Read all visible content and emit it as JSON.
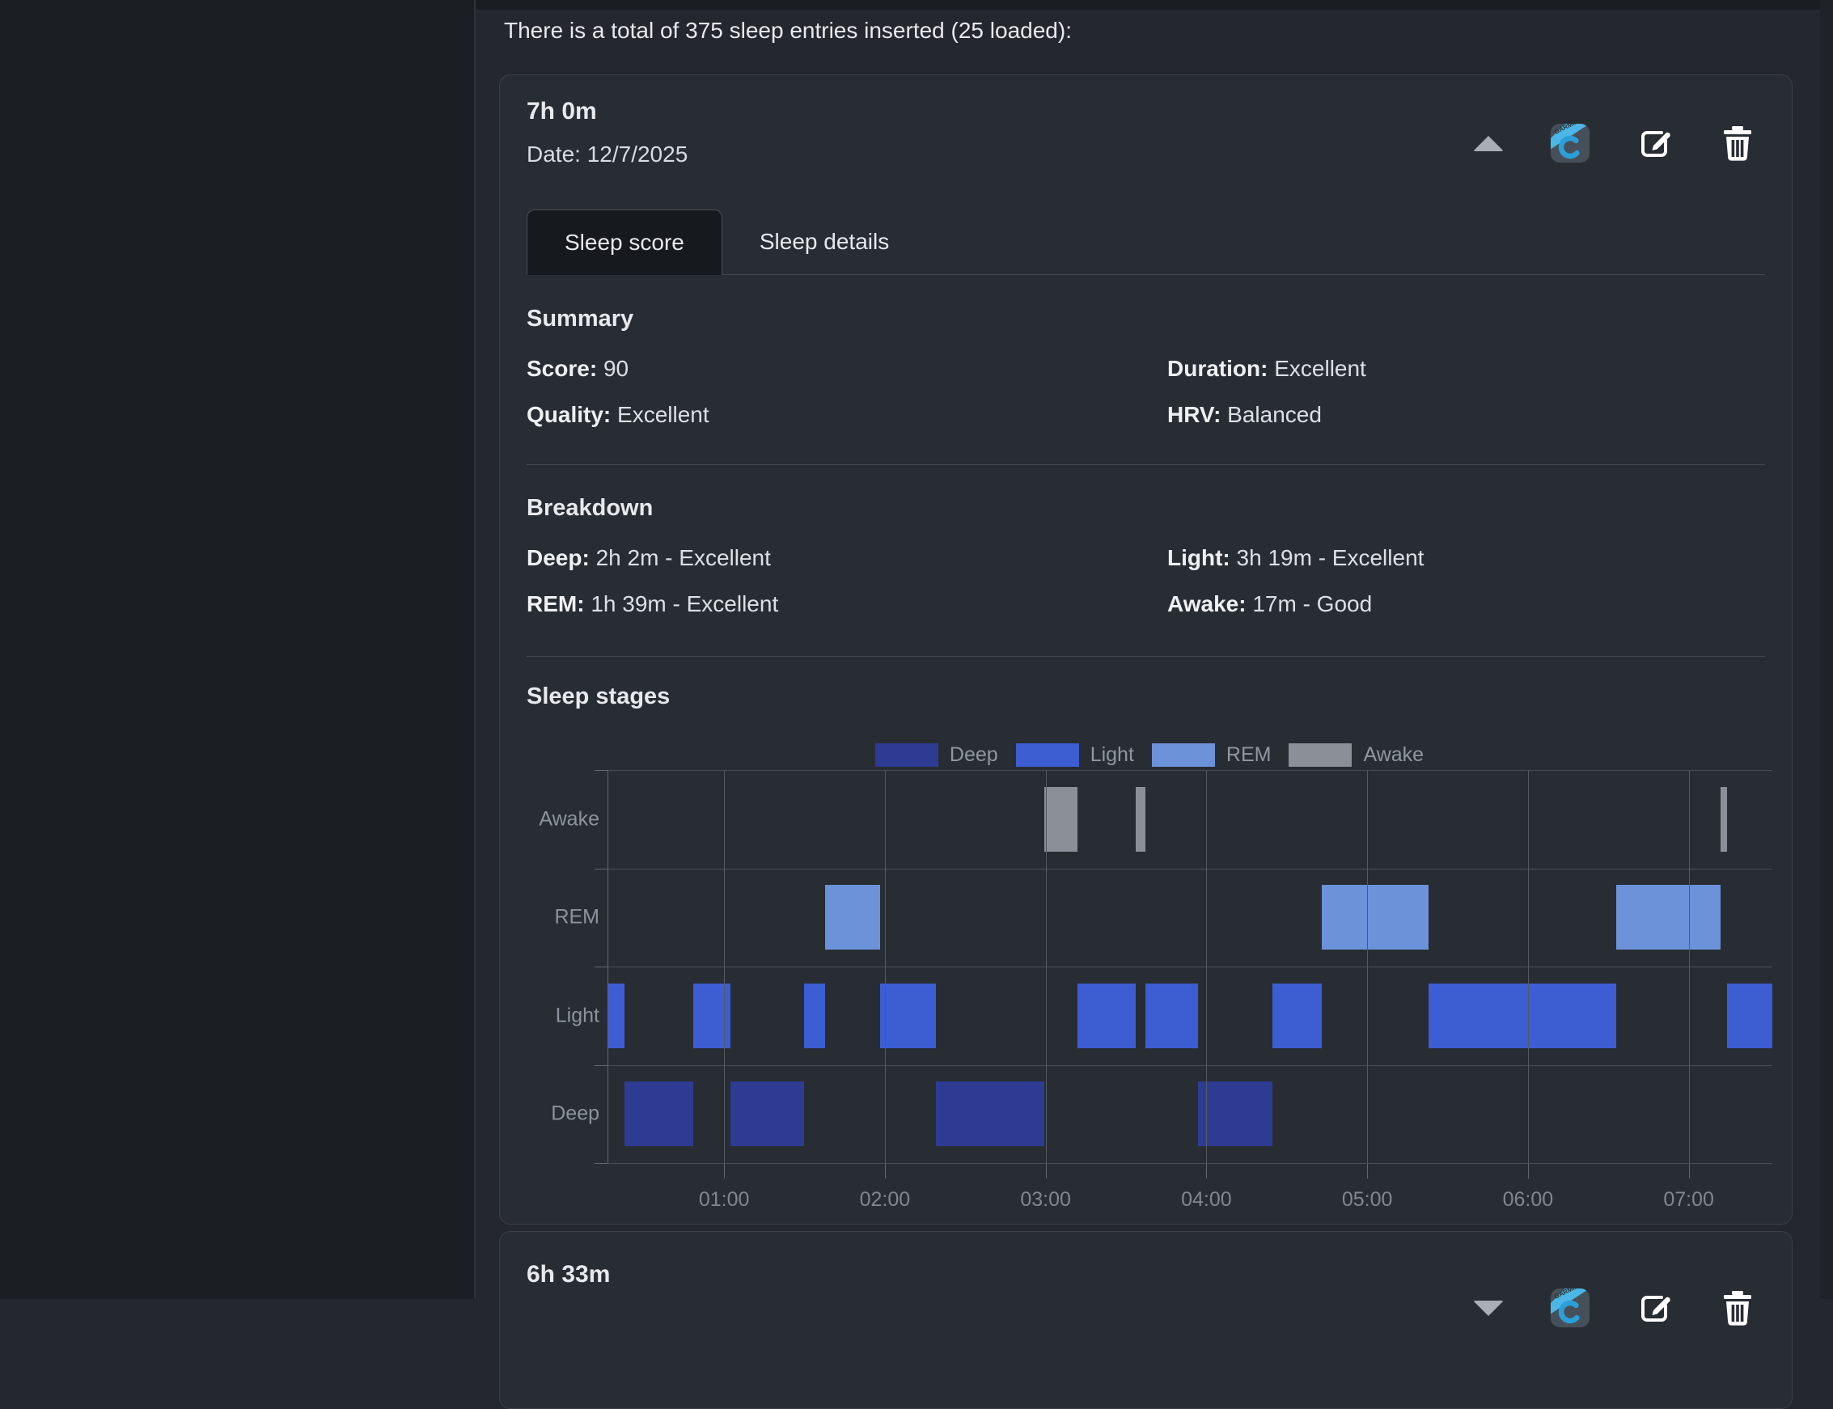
{
  "window": {
    "header_note": "There is a total of 375 sleep entries inserted (25 loaded):"
  },
  "entry": {
    "title": "7h 0m",
    "date": "Date: 12/7/2025",
    "actions": {
      "collapse_icon": "chevron-up-triangle",
      "source_icon": "garmin-connect-badge",
      "edit_icon": "edit-pencil-square",
      "delete_icon": "trash-can"
    },
    "tabs": [
      {
        "label": "Sleep score",
        "active": true
      },
      {
        "label": "Sleep details",
        "active": false
      }
    ],
    "summary": {
      "heading": "Summary",
      "rows": [
        {
          "label": "Score:",
          "value": "90"
        },
        {
          "label": "Duration:",
          "value": "Excellent"
        },
        {
          "label": "Quality:",
          "value": "Excellent"
        },
        {
          "label": "HRV:",
          "value": "Balanced"
        }
      ]
    },
    "breakdown": {
      "heading": "Breakdown",
      "rows": [
        {
          "label": "Deep:",
          "value": "2h 2m - Excellent"
        },
        {
          "label": "Light:",
          "value": "3h 19m - Excellent"
        },
        {
          "label": "REM:",
          "value": "1h 39m - Excellent"
        },
        {
          "label": "Awake:",
          "value": "17m - Good"
        }
      ]
    },
    "stages_heading": "Sleep stages"
  },
  "next_entry": {
    "title": "6h 33m",
    "actions": {
      "expand_icon": "chevron-down-triangle",
      "source_icon": "garmin-connect-badge",
      "edit_icon": "edit-pencil-square",
      "delete_icon": "trash-can"
    }
  },
  "chart_data": {
    "type": "timeline",
    "title": "Sleep stages",
    "rows": [
      "Awake",
      "REM",
      "Light",
      "Deep"
    ],
    "x_domain_hours": [
      0.275,
      7.52
    ],
    "x_ticks": [
      {
        "hour": 1,
        "label": "01:00"
      },
      {
        "hour": 2,
        "label": "02:00"
      },
      {
        "hour": 3,
        "label": "03:00"
      },
      {
        "hour": 4,
        "label": "04:00"
      },
      {
        "hour": 5,
        "label": "05:00"
      },
      {
        "hour": 6,
        "label": "06:00"
      },
      {
        "hour": 7,
        "label": "07:00"
      }
    ],
    "legend": [
      {
        "label": "Deep",
        "color": "#2d3c92"
      },
      {
        "label": "Light",
        "color": "#3c5ed2"
      },
      {
        "label": "REM",
        "color": "#6c92d9"
      },
      {
        "label": "Awake",
        "color": "#8b9098"
      }
    ],
    "stage_colors": {
      "Deep": "#2d3c92",
      "Light": "#3c5ed2",
      "REM": "#6c92d9",
      "Awake": "#8b9098"
    },
    "segments": [
      {
        "stage": "Light",
        "start": 0.275,
        "end": 0.38
      },
      {
        "stage": "Deep",
        "start": 0.38,
        "end": 0.81
      },
      {
        "stage": "Light",
        "start": 0.81,
        "end": 1.04
      },
      {
        "stage": "Deep",
        "start": 1.04,
        "end": 1.5
      },
      {
        "stage": "Light",
        "start": 1.5,
        "end": 1.63
      },
      {
        "stage": "REM",
        "start": 1.63,
        "end": 1.97
      },
      {
        "stage": "Light",
        "start": 1.97,
        "end": 2.32
      },
      {
        "stage": "Deep",
        "start": 2.32,
        "end": 2.99
      },
      {
        "stage": "Awake",
        "start": 2.99,
        "end": 3.2
      },
      {
        "stage": "Light",
        "start": 3.2,
        "end": 3.56
      },
      {
        "stage": "Awake",
        "start": 3.56,
        "end": 3.62
      },
      {
        "stage": "Light",
        "start": 3.62,
        "end": 3.95
      },
      {
        "stage": "Deep",
        "start": 3.95,
        "end": 4.41
      },
      {
        "stage": "Light",
        "start": 4.41,
        "end": 4.72
      },
      {
        "stage": "REM",
        "start": 4.72,
        "end": 5.38
      },
      {
        "stage": "Light",
        "start": 5.38,
        "end": 6.55
      },
      {
        "stage": "REM",
        "start": 6.55,
        "end": 7.2
      },
      {
        "stage": "Awake",
        "start": 7.2,
        "end": 7.24
      },
      {
        "stage": "Light",
        "start": 7.24,
        "end": 7.52
      }
    ]
  }
}
